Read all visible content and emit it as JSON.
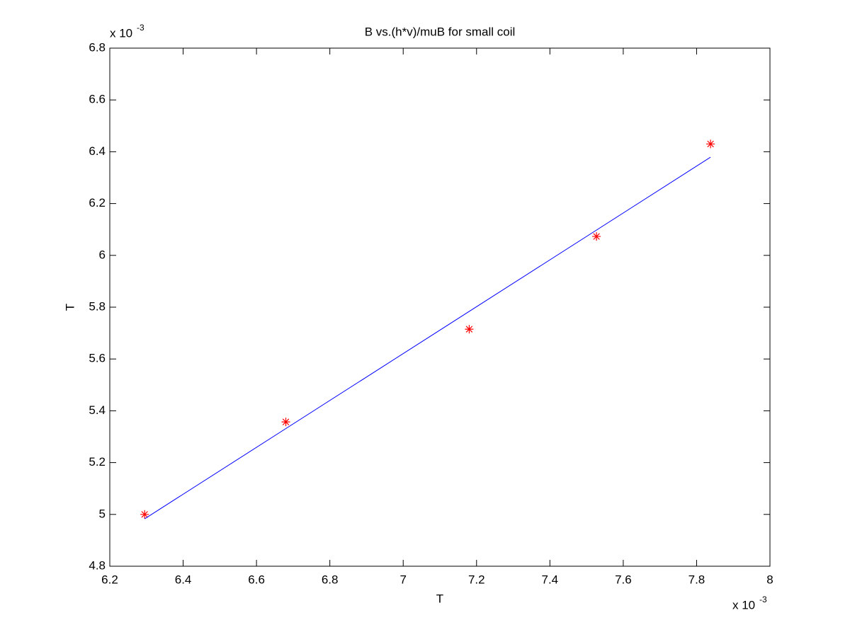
{
  "chart_data": {
    "type": "scatter",
    "title": "B vs.(h*v)/muB for small coil",
    "x_label": "T",
    "y_label": "T",
    "x_multiplier": {
      "base": "x 10",
      "exponent": "-3"
    },
    "y_multiplier": {
      "base": "x 10",
      "exponent": "-3"
    },
    "xlim": [
      6.2,
      8
    ],
    "xticks": [
      6.2,
      6.4,
      6.6,
      6.8,
      7,
      7.2,
      7.4,
      7.6,
      7.8,
      8
    ],
    "ylim": [
      4.8,
      6.8
    ],
    "yticks": [
      4.8,
      5,
      5.2,
      5.4,
      5.6,
      5.8,
      6,
      6.2,
      6.4,
      6.6,
      6.8
    ],
    "grid": false,
    "series": [
      {
        "mode": "markers",
        "marker": "*",
        "color": "#ff0000",
        "x": [
          6.295,
          6.68,
          7.18,
          7.527,
          7.838
        ],
        "values": [
          5.0,
          5.357,
          5.715,
          6.073,
          6.43
        ]
      },
      {
        "mode": "line",
        "color": "#0000ff",
        "x": [
          6.295,
          7.838
        ],
        "values": [
          4.983,
          6.379
        ]
      }
    ]
  }
}
